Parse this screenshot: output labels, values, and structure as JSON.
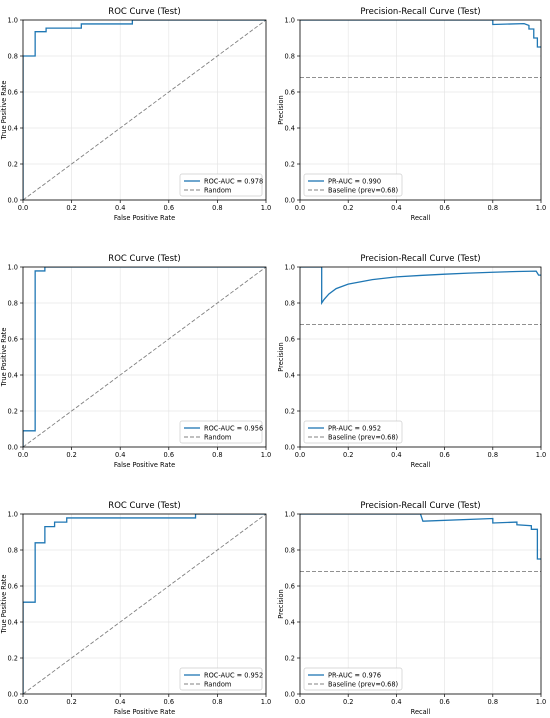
{
  "colors": {
    "curve": "#1f77b4",
    "reference": "#808080",
    "grid": "#e6e6e6",
    "frame": "#000000"
  },
  "chart_data": [
    {
      "type": "line",
      "kind": "roc",
      "title": "ROC Curve (Test)",
      "xlabel": "False Positive Rate",
      "ylabel": "True Positive Rate",
      "xlim": [
        0,
        1
      ],
      "ylim": [
        0,
        1
      ],
      "grid": true,
      "legend_loc": "bottom-right",
      "xticks": [
        "0.0",
        "0.2",
        "0.4",
        "0.6",
        "0.8",
        "1.0"
      ],
      "yticks": [
        "0.0",
        "0.2",
        "0.4",
        "0.6",
        "0.8",
        "1.0"
      ],
      "series": [
        {
          "name": "ROC-AUC = 0.978",
          "style": "solid",
          "color": "#1f77b4",
          "x": [
            0,
            0,
            0.05,
            0.05,
            0.095,
            0.095,
            0.24,
            0.24,
            0.45,
            0.45,
            1.0
          ],
          "y": [
            0,
            0.8,
            0.8,
            0.935,
            0.935,
            0.955,
            0.955,
            0.978,
            0.978,
            1.0,
            1.0
          ]
        },
        {
          "name": "Random",
          "style": "dashed",
          "color": "#808080",
          "x": [
            0,
            1
          ],
          "y": [
            0,
            1
          ]
        }
      ]
    },
    {
      "type": "line",
      "kind": "pr",
      "title": "Precision-Recall Curve (Test)",
      "xlabel": "Recall",
      "ylabel": "Precision",
      "xlim": [
        0,
        1
      ],
      "ylim": [
        0,
        1
      ],
      "grid": true,
      "legend_loc": "bottom-left",
      "xticks": [
        "0.0",
        "0.2",
        "0.4",
        "0.6",
        "0.8",
        "1.0"
      ],
      "yticks": [
        "0.0",
        "0.2",
        "0.4",
        "0.6",
        "0.8",
        "1.0"
      ],
      "series": [
        {
          "name": "PR-AUC = 0.990",
          "style": "solid",
          "color": "#1f77b4",
          "x": [
            0,
            0.8,
            0.8,
            0.93,
            0.95,
            0.95,
            0.97,
            0.97,
            0.985,
            0.985,
            1.0
          ],
          "y": [
            1.0,
            1.0,
            0.975,
            0.98,
            0.97,
            0.95,
            0.95,
            0.9,
            0.9,
            0.85,
            0.85
          ]
        },
        {
          "name": "Baseline (prev=0.68)",
          "style": "dashed",
          "color": "#808080",
          "x": [
            0,
            1
          ],
          "y": [
            0.68,
            0.68
          ]
        }
      ]
    },
    {
      "type": "line",
      "kind": "roc",
      "title": "ROC Curve (Test)",
      "xlabel": "False Positive Rate",
      "ylabel": "True Positive Rate",
      "xlim": [
        0,
        1
      ],
      "ylim": [
        0,
        1
      ],
      "grid": true,
      "legend_loc": "bottom-right",
      "xticks": [
        "0.0",
        "0.2",
        "0.4",
        "0.6",
        "0.8",
        "1.0"
      ],
      "yticks": [
        "0.0",
        "0.2",
        "0.4",
        "0.6",
        "0.8",
        "1.0"
      ],
      "series": [
        {
          "name": "ROC-AUC = 0.956",
          "style": "solid",
          "color": "#1f77b4",
          "x": [
            0,
            0,
            0.05,
            0.05,
            0.09,
            0.09,
            1.0
          ],
          "y": [
            0,
            0.09,
            0.09,
            0.978,
            0.978,
            1.0,
            1.0
          ]
        },
        {
          "name": "Random",
          "style": "dashed",
          "color": "#808080",
          "x": [
            0,
            1
          ],
          "y": [
            0,
            1
          ]
        }
      ]
    },
    {
      "type": "line",
      "kind": "pr",
      "title": "Precision-Recall Curve (Test)",
      "xlabel": "Recall",
      "ylabel": "Precision",
      "xlim": [
        0,
        1
      ],
      "ylim": [
        0,
        1
      ],
      "grid": true,
      "legend_loc": "bottom-left",
      "xticks": [
        "0.0",
        "0.2",
        "0.4",
        "0.6",
        "0.8",
        "1.0"
      ],
      "yticks": [
        "0.0",
        "0.2",
        "0.4",
        "0.6",
        "0.8",
        "1.0"
      ],
      "series": [
        {
          "name": "PR-AUC = 0.952",
          "style": "solid",
          "color": "#1f77b4",
          "x": [
            0,
            0.09,
            0.09,
            0.1,
            0.12,
            0.15,
            0.2,
            0.3,
            0.4,
            0.5,
            0.6,
            0.7,
            0.8,
            0.9,
            0.98,
            0.99,
            1.0
          ],
          "y": [
            1.0,
            1.0,
            0.8,
            0.82,
            0.85,
            0.88,
            0.905,
            0.93,
            0.945,
            0.953,
            0.96,
            0.966,
            0.971,
            0.975,
            0.977,
            0.955,
            0.955
          ]
        },
        {
          "name": "Baseline (prev=0.68)",
          "style": "dashed",
          "color": "#808080",
          "x": [
            0,
            1
          ],
          "y": [
            0.68,
            0.68
          ]
        }
      ]
    },
    {
      "type": "line",
      "kind": "roc",
      "title": "ROC Curve (Test)",
      "xlabel": "False Positive Rate",
      "ylabel": "True Positive Rate",
      "xlim": [
        0,
        1
      ],
      "ylim": [
        0,
        1
      ],
      "grid": true,
      "legend_loc": "bottom-right",
      "xticks": [
        "0.0",
        "0.2",
        "0.4",
        "0.6",
        "0.8",
        "1.0"
      ],
      "yticks": [
        "0.0",
        "0.2",
        "0.4",
        "0.6",
        "0.8",
        "1.0"
      ],
      "series": [
        {
          "name": "ROC-AUC = 0.952",
          "style": "solid",
          "color": "#1f77b4",
          "x": [
            0,
            0,
            0.05,
            0.05,
            0.09,
            0.09,
            0.13,
            0.13,
            0.18,
            0.18,
            0.71,
            0.71,
            1.0
          ],
          "y": [
            0,
            0.51,
            0.51,
            0.84,
            0.84,
            0.93,
            0.93,
            0.955,
            0.955,
            0.978,
            0.978,
            1.0,
            1.0
          ]
        },
        {
          "name": "Random",
          "style": "dashed",
          "color": "#808080",
          "x": [
            0,
            1
          ],
          "y": [
            0,
            1
          ]
        }
      ]
    },
    {
      "type": "line",
      "kind": "pr",
      "title": "Precision-Recall Curve (Test)",
      "xlabel": "Recall",
      "ylabel": "Precision",
      "xlim": [
        0,
        1
      ],
      "ylim": [
        0,
        1
      ],
      "grid": true,
      "legend_loc": "bottom-left",
      "xticks": [
        "0.0",
        "0.2",
        "0.4",
        "0.6",
        "0.8",
        "1.0"
      ],
      "yticks": [
        "0.0",
        "0.2",
        "0.4",
        "0.6",
        "0.8",
        "1.0"
      ],
      "series": [
        {
          "name": "PR-AUC = 0.976",
          "style": "solid",
          "color": "#1f77b4",
          "x": [
            0,
            0.5,
            0.51,
            0.8,
            0.8,
            0.9,
            0.9,
            0.96,
            0.96,
            0.985,
            0.985,
            1.0
          ],
          "y": [
            1.0,
            1.0,
            0.96,
            0.975,
            0.95,
            0.955,
            0.94,
            0.935,
            0.915,
            0.915,
            0.75,
            0.75
          ]
        },
        {
          "name": "Baseline (prev=0.68)",
          "style": "dashed",
          "color": "#808080",
          "x": [
            0,
            1
          ],
          "y": [
            0.68,
            0.68
          ]
        }
      ]
    }
  ]
}
